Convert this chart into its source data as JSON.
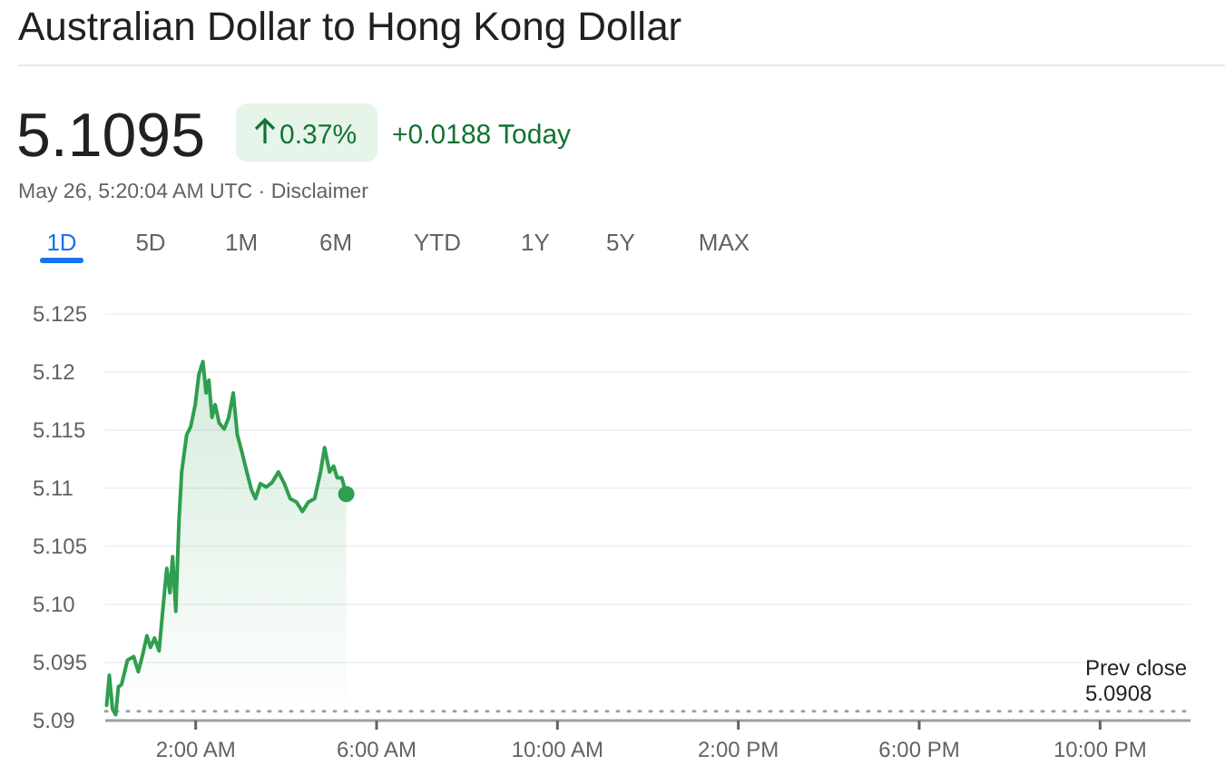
{
  "chart_data": {
    "type": "area",
    "title": "Australian Dollar to Hong Kong Dollar",
    "annotations": [
      "5.1095",
      "0.37%",
      "+0.0188 Today",
      "May 26, 5:20:04 AM UTC · Disclaimer",
      "1D",
      "5D",
      "1M",
      "6M",
      "YTD",
      "1Y",
      "5Y",
      "MAX"
    ],
    "series": [
      {
        "color": "#2e9e4f",
        "x": [
          0.03,
          0.09,
          0.16,
          0.23,
          0.29,
          0.36,
          0.43,
          0.49,
          0.63,
          0.73,
          0.83,
          0.92,
          1.0,
          1.09,
          1.19,
          1.27,
          1.36,
          1.43,
          1.49,
          1.56,
          1.63,
          1.69,
          1.8,
          1.89,
          1.99,
          2.07,
          2.16,
          2.23,
          2.29,
          2.36,
          2.43,
          2.52,
          2.63,
          2.73,
          2.83,
          2.92,
          3.03,
          3.13,
          3.23,
          3.32,
          3.43,
          3.56,
          3.69,
          3.83,
          3.96,
          4.09,
          4.23,
          4.36,
          4.49,
          4.63,
          4.76,
          4.85,
          4.96,
          5.05,
          5.13,
          5.23,
          5.33
        ],
        "values": [
          5.0913,
          5.0939,
          5.091,
          5.0905,
          5.0929,
          5.0931,
          5.0942,
          5.0952,
          5.0955,
          5.0942,
          5.0957,
          5.0973,
          5.0963,
          5.0971,
          5.096,
          5.0994,
          5.1031,
          5.101,
          5.1041,
          5.0994,
          5.1072,
          5.1114,
          5.1146,
          5.1153,
          5.1172,
          5.1198,
          5.1209,
          5.1182,
          5.1193,
          5.1161,
          5.1172,
          5.1156,
          5.1151,
          5.1161,
          5.1182,
          5.1146,
          5.113,
          5.1114,
          5.1099,
          5.1091,
          5.1104,
          5.1101,
          5.1105,
          5.1114,
          5.1104,
          5.1091,
          5.1088,
          5.108,
          5.1088,
          5.1091,
          5.1114,
          5.1135,
          5.1114,
          5.1119,
          5.1109,
          5.1109,
          5.1095
        ]
      }
    ],
    "xlim": [
      0,
      24
    ],
    "xticks": [
      {
        "value": 2,
        "label": "2:00 AM"
      },
      {
        "value": 6,
        "label": "6:00 AM"
      },
      {
        "value": 10,
        "label": "10:00 AM"
      },
      {
        "value": 14,
        "label": "2:00 PM"
      },
      {
        "value": 18,
        "label": "6:00 PM"
      },
      {
        "value": 22,
        "label": "10:00 PM"
      }
    ],
    "ylim": [
      5.09,
      5.125
    ],
    "yticks": [
      {
        "value": 5.09,
        "label": "5.09"
      },
      {
        "value": 5.095,
        "label": "5.095"
      },
      {
        "value": 5.1,
        "label": "5.10"
      },
      {
        "value": 5.105,
        "label": "5.105"
      },
      {
        "value": 5.11,
        "label": "5.11"
      },
      {
        "value": 5.115,
        "label": "5.115"
      },
      {
        "value": 5.12,
        "label": "5.12"
      },
      {
        "value": 5.125,
        "label": "5.125"
      }
    ],
    "ref_lines": [
      {
        "axis": "y",
        "value": 5.0908,
        "label": "Prev close\n5.0908",
        "line_style": "dotted",
        "color": "#9aa0a6"
      }
    ],
    "grid": "y"
  }
}
